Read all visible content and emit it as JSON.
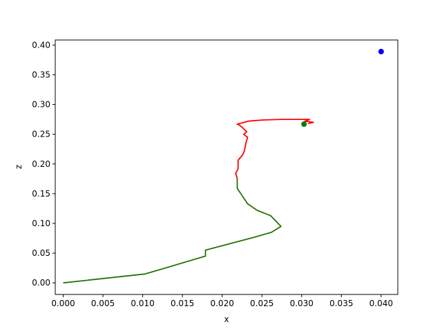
{
  "chart_data": {
    "type": "line",
    "xlabel": "x",
    "ylabel": "z",
    "xlim": [
      -0.001,
      0.0421
    ],
    "ylim": [
      -0.0195,
      0.4085
    ],
    "x_ticks": [
      0.0,
      0.005,
      0.01,
      0.015,
      0.02,
      0.025,
      0.03,
      0.035,
      0.04
    ],
    "x_tick_labels": [
      "0.000",
      "0.005",
      "0.010",
      "0.015",
      "0.020",
      "0.025",
      "0.030",
      "0.035",
      "0.040"
    ],
    "y_ticks": [
      0.0,
      0.05,
      0.1,
      0.15,
      0.2,
      0.25,
      0.3,
      0.35,
      0.4
    ],
    "y_tick_labels": [
      "0.00",
      "0.05",
      "0.10",
      "0.15",
      "0.20",
      "0.25",
      "0.30",
      "0.35",
      "0.40"
    ],
    "grid": false,
    "series": [
      {
        "color": "#ff0000",
        "kind": "line",
        "x": [
          0.0219,
          0.0217,
          0.022,
          0.022,
          0.0226,
          0.0228,
          0.0229,
          0.023,
          0.0232,
          0.0227,
          0.0231,
          0.0228,
          0.0225,
          0.0222,
          0.0219,
          0.0233,
          0.0251,
          0.0275,
          0.03,
          0.031,
          0.0304,
          0.0315,
          0.0308
        ],
        "y": [
          0.176,
          0.184,
          0.192,
          0.206,
          0.216,
          0.222,
          0.229,
          0.236,
          0.245,
          0.25,
          0.254,
          0.258,
          0.262,
          0.265,
          0.267,
          0.272,
          0.274,
          0.275,
          0.275,
          0.275,
          0.272,
          0.27,
          0.268
        ]
      },
      {
        "color": "#267300",
        "kind": "line",
        "x": [
          0.0,
          0.0103,
          0.0126,
          0.0179,
          0.0179,
          0.0238,
          0.0262,
          0.0274,
          0.0261,
          0.0244,
          0.0232,
          0.0219,
          0.0219
        ],
        "y": [
          0.0,
          0.015,
          0.024,
          0.045,
          0.055,
          0.076,
          0.085,
          0.095,
          0.113,
          0.122,
          0.133,
          0.159,
          0.176
        ]
      },
      {
        "color": "#008000",
        "kind": "point",
        "x": [
          0.0303
        ],
        "y": [
          0.267
        ]
      },
      {
        "color": "#0000ff",
        "kind": "point",
        "x": [
          0.04
        ],
        "y": [
          0.389
        ]
      }
    ]
  }
}
